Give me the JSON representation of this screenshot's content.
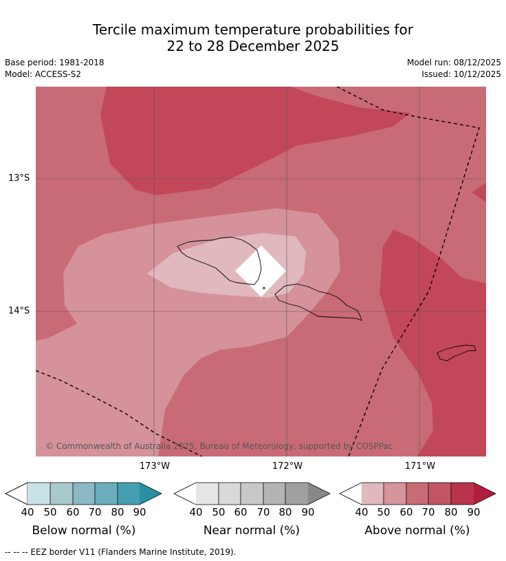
{
  "header": {
    "title_line1": "Tercile maximum temperature probabilities for",
    "title_line2": "22 to 28 December 2025",
    "base_period": "Base period: 1981-2018",
    "model": "Model: ACCESS-S2",
    "model_run": "Model run: 08/12/2025",
    "issued": "Issued: 10/12/2025"
  },
  "map": {
    "lat_labels": [
      "13°S",
      "14°S"
    ],
    "lon_labels": [
      "173°W",
      "172°W",
      "171°W"
    ],
    "copyright": "© Commonwealth of Australia 2025, Bureau of Meteorology, supported by COSPPac"
  },
  "legends": {
    "ticks": [
      "40",
      "50",
      "60",
      "70",
      "80",
      "90"
    ],
    "below": {
      "title": "Below normal (%)",
      "colors": [
        "#c9e2e8",
        "#a7c8cd",
        "#8ab8c5",
        "#6aaebe",
        "#459fb2",
        "#2a8fa5"
      ]
    },
    "near": {
      "title": "Near normal (%)",
      "colors": [
        "#e5e5e5",
        "#d9d9d9",
        "#c8c8c8",
        "#b4b4b4",
        "#a0a0a0",
        "#888888"
      ]
    },
    "above": {
      "title": "Above normal (%)",
      "colors": [
        "#e0b8bd",
        "#d6949c",
        "#c96b76",
        "#c25563",
        "#b8344a",
        "#b01e3c"
      ]
    }
  },
  "footnote": "--  --  -- EEZ border V11 (Flanders Marine Institute, 2019)."
}
